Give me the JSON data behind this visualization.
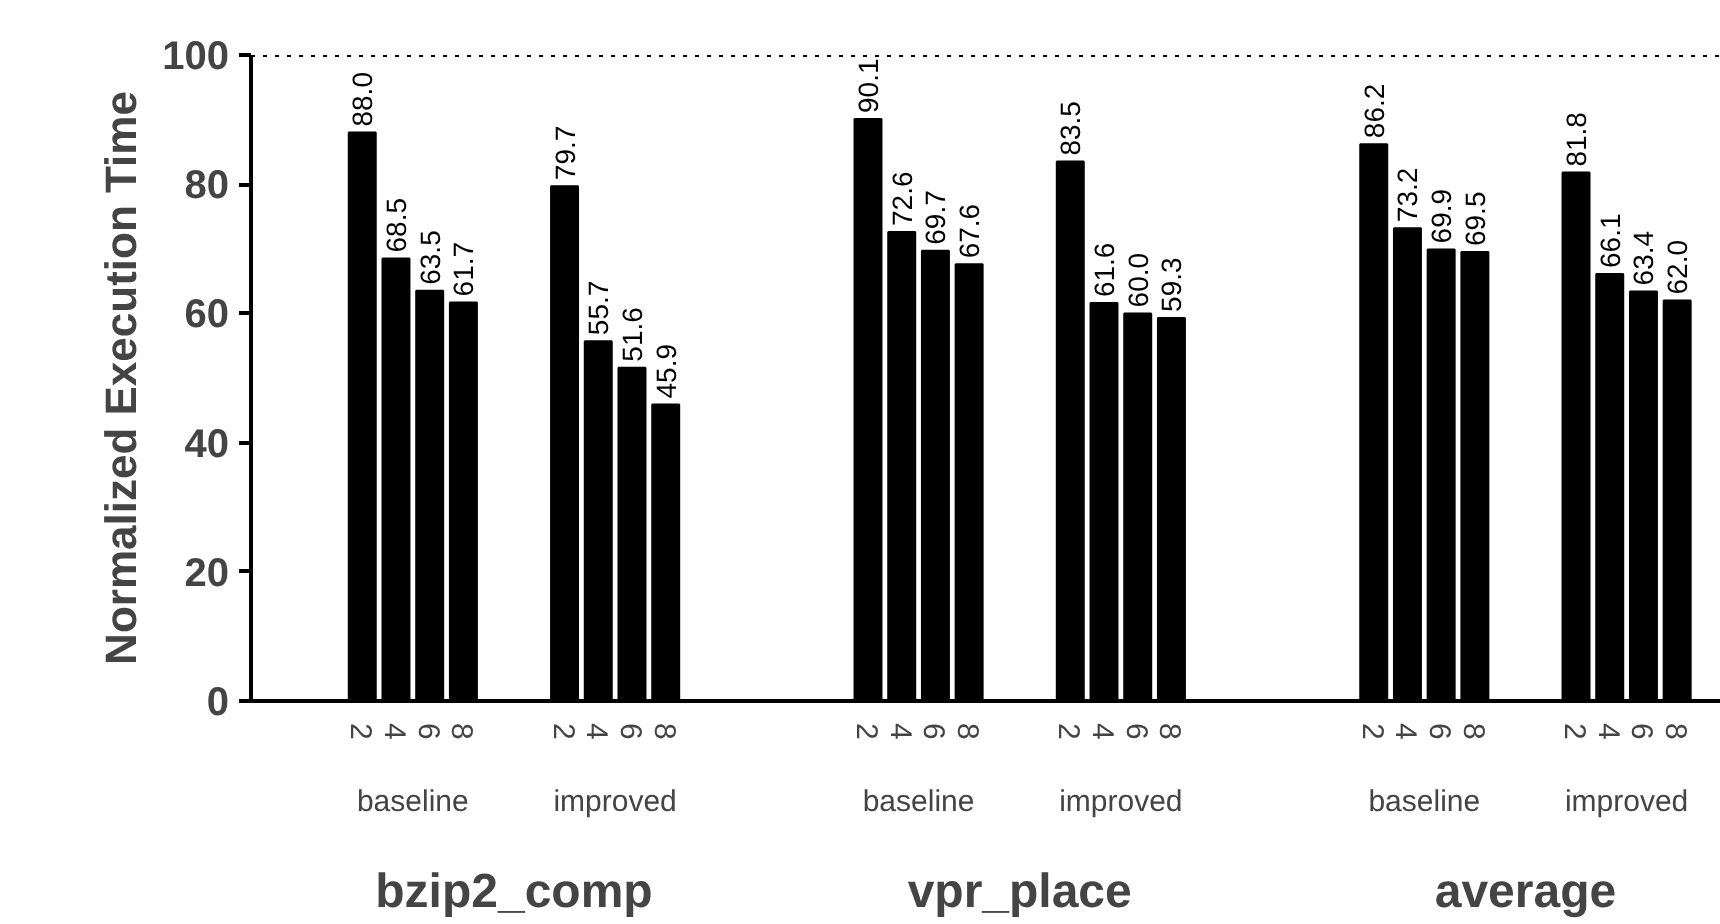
{
  "chart_data": {
    "type": "bar",
    "ylabel": "Normalized Execution Time",
    "categories": [
      "2",
      "4",
      "6",
      "8",
      null,
      null,
      "2",
      "4",
      "6",
      "8",
      null,
      null,
      null,
      null,
      null,
      "2",
      "4",
      "6",
      "8",
      null,
      null,
      "2",
      "4",
      "6",
      "8",
      null,
      null,
      null,
      null,
      null,
      "2",
      "4",
      "6",
      "8",
      null,
      null,
      "2",
      "4",
      "6",
      "8"
    ],
    "values": [
      88.0,
      68.5,
      63.5,
      61.7,
      null,
      null,
      79.7,
      55.7,
      51.6,
      45.9,
      null,
      null,
      null,
      null,
      null,
      90.1,
      72.6,
      69.7,
      67.6,
      null,
      null,
      83.5,
      61.6,
      60.0,
      59.3,
      null,
      null,
      null,
      null,
      null,
      86.2,
      73.2,
      69.9,
      69.5,
      null,
      null,
      81.8,
      66.1,
      63.4,
      62.0
    ],
    "value_labels": [
      "88.0",
      "68.5",
      "63.5",
      "61.7",
      null,
      null,
      "79.7",
      "55.7",
      "51.6",
      "45.9",
      null,
      null,
      null,
      null,
      null,
      "90.1",
      "72.6",
      "69.7",
      "67.6",
      null,
      null,
      "83.5",
      "61.6",
      "60.0",
      "59.3",
      null,
      null,
      null,
      null,
      null,
      "86.2",
      "73.2",
      "69.9",
      "69.5",
      null,
      null,
      "81.8",
      "66.1",
      "63.4",
      "62.0"
    ],
    "color": "#000000",
    "annotations": [
      "baseline",
      "improved",
      "baseline",
      "improved",
      "baseline",
      "improved",
      "bzip2_comp",
      "vpr_place",
      "average"
    ],
    "ylim": [
      0,
      100
    ],
    "yticks": [
      0,
      20,
      40,
      60,
      80,
      100
    ],
    "ref_lines": [
      {
        "axis": "y",
        "value": 100,
        "line_style": "dotted",
        "color": "#000000"
      }
    ],
    "grid": false
  }
}
